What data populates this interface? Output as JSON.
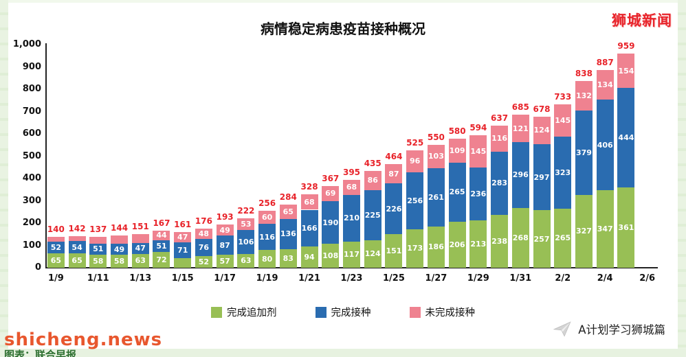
{
  "page": {
    "brand": "狮城新闻",
    "watermark": "shicheng.news",
    "credit": "图表：联合早报",
    "footer_brand": "A计划学习狮城篇"
  },
  "legend_note": "legend built from chart_data.series",
  "chart_data": {
    "type": "bar",
    "stacked": true,
    "title": "病情稳定病患疫苗接种概况",
    "xlabel": "",
    "ylabel": "",
    "ylim": [
      0,
      1000
    ],
    "ytick_step": 100,
    "ytick_top_label": "1,000",
    "grid": false,
    "legend_position": "bottom",
    "categories": [
      "1/9",
      "1/10",
      "1/11",
      "1/12",
      "1/13",
      "1/14",
      "1/15",
      "1/16",
      "1/17",
      "1/18",
      "1/19",
      "1/20",
      "1/21",
      "1/22",
      "1/23",
      "1/24",
      "1/25",
      "1/26",
      "1/27",
      "1/28",
      "1/29",
      "1/30",
      "1/31",
      "2/1",
      "2/2",
      "2/3",
      "2/4",
      "2/5"
    ],
    "x_axis_labels": [
      "1/9",
      "1/11",
      "1/13",
      "1/15",
      "1/17",
      "1/19",
      "1/21",
      "1/23",
      "1/25",
      "1/27",
      "1/29",
      "1/31",
      "2/2",
      "2/4",
      "2/6"
    ],
    "series": [
      {
        "name": "完成追加剂",
        "color": "#98bf55",
        "values": [
          65,
          65,
          58,
          58,
          63,
          72,
          43,
          52,
          57,
          63,
          80,
          83,
          94,
          108,
          117,
          124,
          151,
          173,
          186,
          206,
          213,
          238,
          268,
          257,
          265,
          327,
          347,
          361
        ]
      },
      {
        "name": "完成接种",
        "color": "#2a6cb0",
        "values": [
          52,
          54,
          51,
          49,
          47,
          51,
          71,
          76,
          87,
          106,
          116,
          136,
          166,
          190,
          210,
          225,
          226,
          256,
          261,
          265,
          236,
          283,
          296,
          297,
          323,
          379,
          406,
          444
        ]
      },
      {
        "name": "未完成接种",
        "color": "#ef8290",
        "values": [
          23,
          23,
          28,
          37,
          41,
          44,
          47,
          48,
          49,
          53,
          60,
          65,
          68,
          69,
          68,
          86,
          87,
          96,
          103,
          109,
          145,
          116,
          121,
          124,
          145,
          132,
          134,
          154
        ]
      }
    ],
    "totals": [
      140,
      142,
      137,
      144,
      151,
      167,
      161,
      176,
      193,
      222,
      256,
      284,
      328,
      367,
      395,
      435,
      464,
      525,
      550,
      580,
      594,
      637,
      685,
      678,
      733,
      838,
      887,
      959
    ],
    "total_label_color": "#e8232a"
  }
}
